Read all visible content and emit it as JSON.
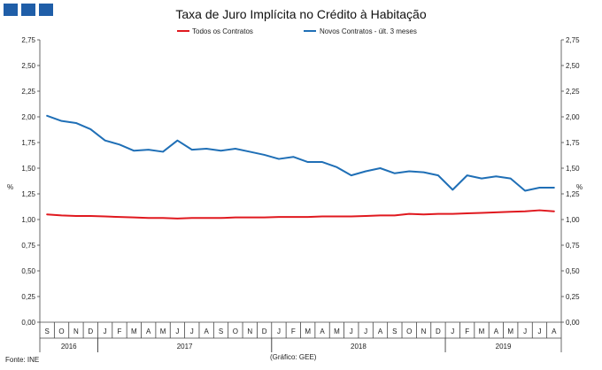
{
  "title": "Taxa de Juro Implícita no Crédito à Habitação",
  "source": "Fonte: INE",
  "credit": "(Gráfico: GEE)",
  "colors": {
    "logo": "#1f5ea8",
    "series_all": "#e0191f",
    "series_new": "#1f6fb6"
  },
  "chart_data": {
    "type": "line",
    "title": "Taxa de Juro Implícita no Crédito à Habitação",
    "xlabel": "",
    "ylabel": "%",
    "ylabel_right": "%",
    "ylim": [
      0,
      2.75
    ],
    "yticks": [
      "0,00",
      "0,25",
      "0,50",
      "0,75",
      "1,00",
      "1,25",
      "1,50",
      "1,75",
      "2,00",
      "2,25",
      "2,50",
      "2,75"
    ],
    "ytick_values": [
      0,
      0.25,
      0.5,
      0.75,
      1.0,
      1.25,
      1.5,
      1.75,
      2.0,
      2.25,
      2.5,
      2.75
    ],
    "grid": false,
    "legend_position": "top-center",
    "x": [
      "S",
      "O",
      "N",
      "D",
      "J",
      "F",
      "M",
      "A",
      "M",
      "J",
      "J",
      "A",
      "S",
      "O",
      "N",
      "D",
      "J",
      "F",
      "M",
      "A",
      "M",
      "J",
      "J",
      "A",
      "S",
      "O",
      "N",
      "D",
      "J",
      "F",
      "M",
      "A",
      "M",
      "J",
      "J",
      "A"
    ],
    "year_groups": [
      {
        "label": "2016",
        "start": 0,
        "end": 3
      },
      {
        "label": "2017",
        "start": 4,
        "end": 15
      },
      {
        "label": "2018",
        "start": 16,
        "end": 27
      },
      {
        "label": "2019",
        "start": 28,
        "end": 35
      }
    ],
    "series": [
      {
        "name": "Todos os Contratos",
        "color": "#e0191f",
        "values": [
          1.05,
          1.04,
          1.035,
          1.035,
          1.03,
          1.025,
          1.02,
          1.015,
          1.015,
          1.01,
          1.015,
          1.015,
          1.015,
          1.02,
          1.02,
          1.02,
          1.025,
          1.025,
          1.025,
          1.03,
          1.03,
          1.03,
          1.035,
          1.04,
          1.04,
          1.055,
          1.05,
          1.055,
          1.055,
          1.06,
          1.065,
          1.07,
          1.075,
          1.08,
          1.09,
          1.08
        ]
      },
      {
        "name": "Novos Contratos - últ. 3 meses",
        "color": "#1f6fb6",
        "values": [
          2.01,
          1.96,
          1.94,
          1.88,
          1.77,
          1.73,
          1.67,
          1.68,
          1.66,
          1.77,
          1.68,
          1.69,
          1.67,
          1.69,
          1.66,
          1.63,
          1.59,
          1.61,
          1.56,
          1.56,
          1.51,
          1.43,
          1.47,
          1.5,
          1.45,
          1.47,
          1.46,
          1.43,
          1.29,
          1.43,
          1.4,
          1.42,
          1.4,
          1.28,
          1.31,
          1.31
        ]
      }
    ]
  }
}
